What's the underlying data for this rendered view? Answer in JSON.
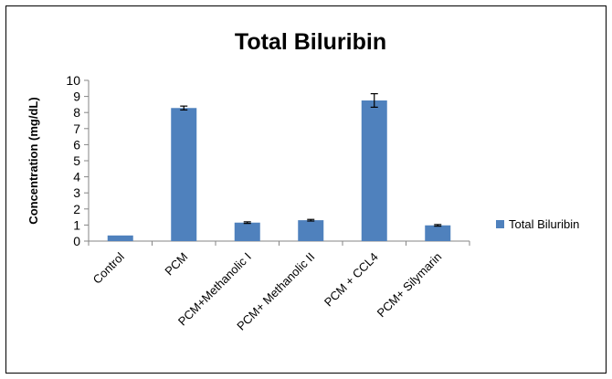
{
  "chart_data": {
    "type": "bar",
    "title": "Total Biluribin",
    "xlabel": "",
    "ylabel": "Concentration (mg/dL)",
    "ylim": [
      0,
      10
    ],
    "yticks": [
      0,
      1,
      2,
      3,
      4,
      5,
      6,
      7,
      8,
      9,
      10
    ],
    "grid": false,
    "legend_position": "right",
    "categories": [
      "Control",
      "PCM",
      "PCM+Methanolic I",
      "PCM+ Methanolic II",
      "PCM + CCL4",
      "PCM+ Silymarin"
    ],
    "series": [
      {
        "name": "Total Biluribin",
        "color": "#4f81bd",
        "values": [
          0.35,
          8.28,
          1.15,
          1.3,
          8.75,
          0.98
        ],
        "errors": [
          0.0,
          0.12,
          0.05,
          0.05,
          0.42,
          0.05
        ]
      }
    ]
  }
}
